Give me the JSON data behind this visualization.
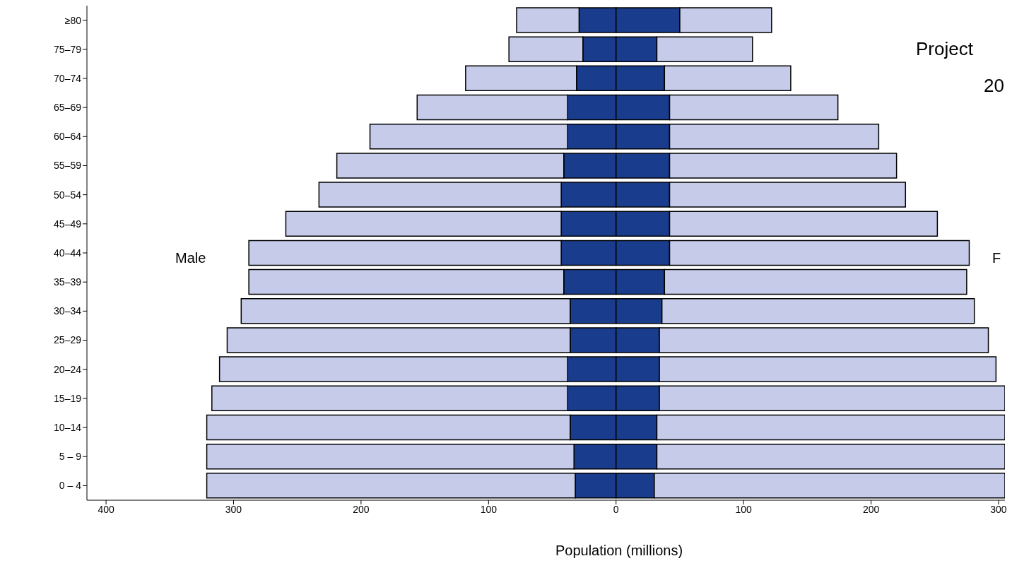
{
  "chart_data": {
    "type": "bar",
    "orientation": "horizontal",
    "stacked": true,
    "xlabel": "Population (millions)",
    "categories": [
      "≥80",
      "75–79",
      "70–74",
      "65–69",
      "60–64",
      "55–59",
      "50–54",
      "45–49",
      "40–44",
      "35–39",
      "30–34",
      "25–29",
      "20–24",
      "15–19",
      "10–14",
      "5 – 9",
      "0 – 4"
    ],
    "series": [
      {
        "color": "#1a3c8c",
        "values": [
          -29,
          -26,
          -31,
          -38,
          -38,
          -41,
          -43,
          -43,
          -43,
          -41,
          -36,
          -36,
          -38,
          -38,
          -36,
          -33,
          -32
        ]
      },
      {
        "color": "#c5cbe9",
        "values": [
          -49,
          -58,
          -87,
          -118,
          -155,
          -178,
          -190,
          -216,
          -245,
          -247,
          -258,
          -269,
          -273,
          -279,
          -285,
          -288,
          -289
        ]
      },
      {
        "color": "#1a3c8c",
        "values": [
          50,
          32,
          38,
          42,
          42,
          42,
          42,
          42,
          42,
          38,
          36,
          34,
          34,
          34,
          32,
          32,
          30
        ]
      },
      {
        "color": "#c5cbe9",
        "values": [
          72,
          75,
          99,
          132,
          164,
          178,
          185,
          210,
          235,
          237,
          245,
          258,
          264,
          271,
          273,
          273,
          275
        ]
      }
    ],
    "xlim": [
      -415,
      305
    ],
    "xticks": [
      {
        "value": -400,
        "label": "400"
      },
      {
        "value": -300,
        "label": "300"
      },
      {
        "value": -200,
        "label": "200"
      },
      {
        "value": -100,
        "label": "100"
      },
      0,
      100,
      200,
      300
    ],
    "annotations": [
      "Male",
      "F",
      "Project",
      "20"
    ]
  }
}
